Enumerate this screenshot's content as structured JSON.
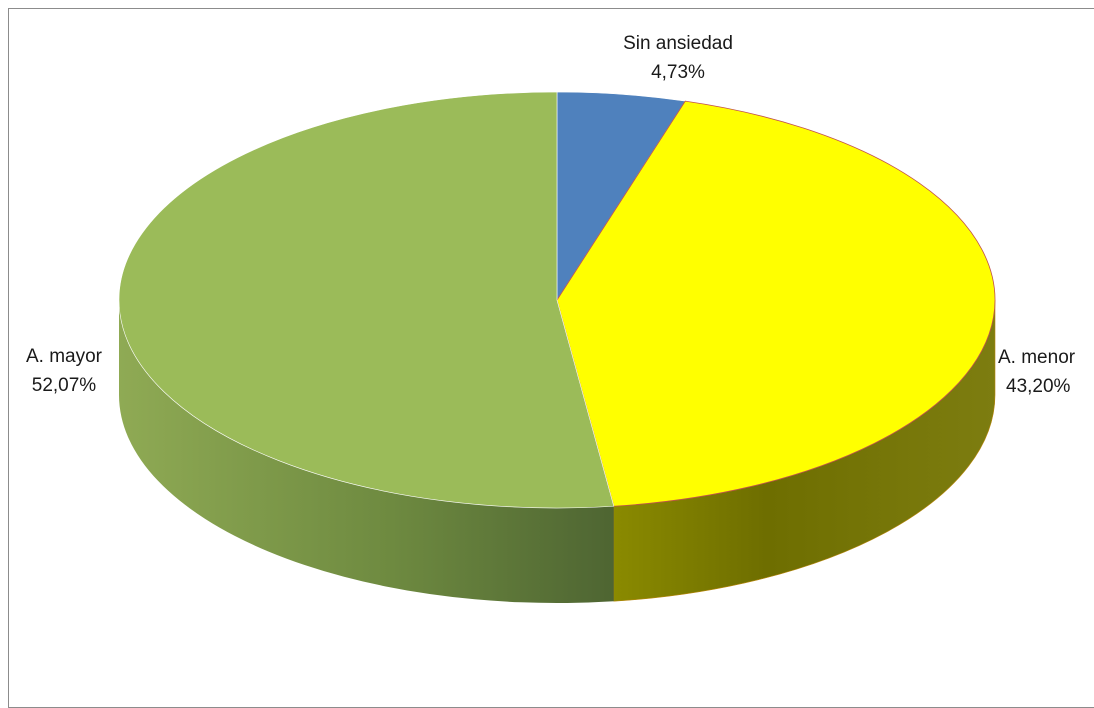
{
  "chart_data": {
    "type": "pie",
    "title": "",
    "slices": [
      {
        "label": "Sin ansiedad",
        "value": 4.73,
        "value_label": "4,73%",
        "color": "#4f81bd"
      },
      {
        "label": "A. menor",
        "value": 43.2,
        "value_label": "43,20%",
        "color": "#ffff00"
      },
      {
        "label": "A. mayor",
        "value": 52.07,
        "value_label": "52,07%",
        "color": "#9bbb59"
      }
    ],
    "style": "3d",
    "legend": "none",
    "data_labels": "category and percentage"
  }
}
